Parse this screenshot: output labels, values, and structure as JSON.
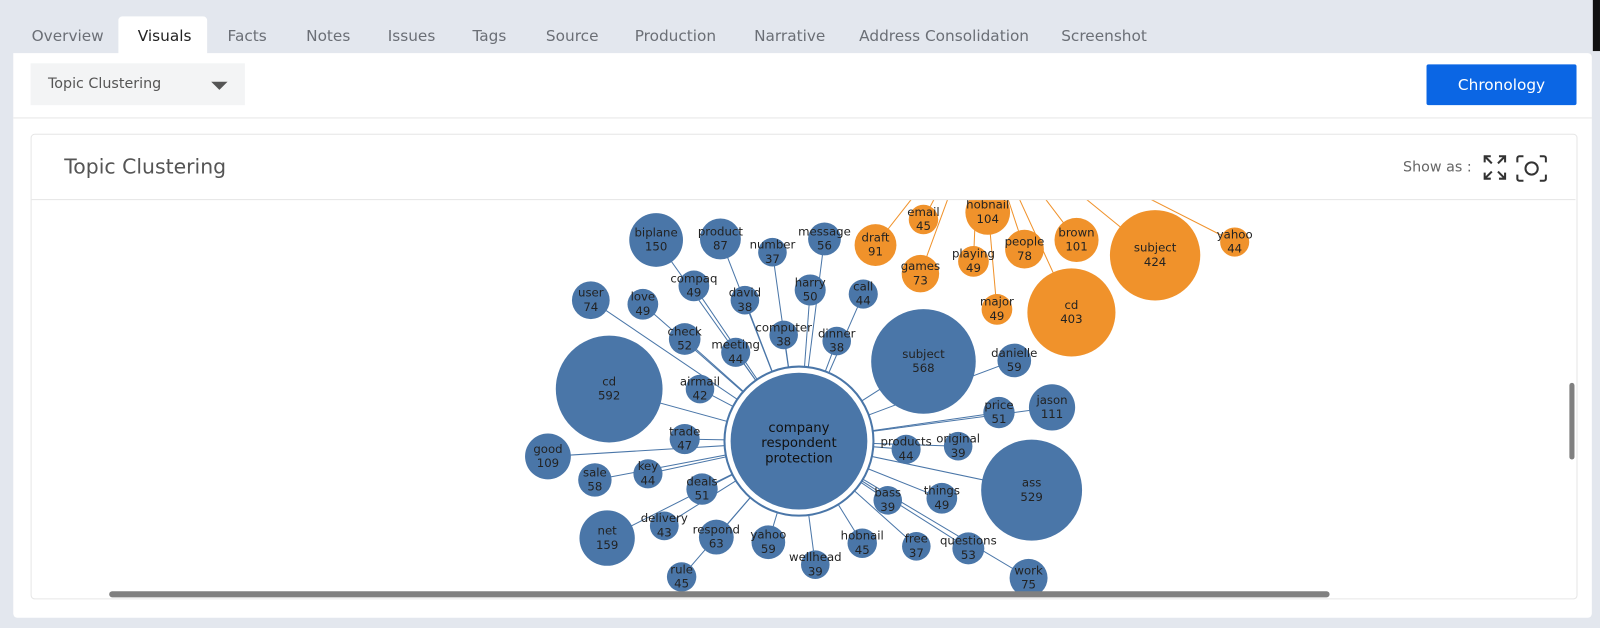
{
  "tabs": [
    "Overview",
    "Visuals",
    "Facts",
    "Notes",
    "Issues",
    "Tags",
    "Source",
    "Production",
    "Narrative",
    "Address Consolidation",
    "Screenshot"
  ],
  "dropdown": {
    "label": "Topic Clustering"
  },
  "button": "Chronology",
  "panel": {
    "title": "Topic Clustering",
    "show_as": "Show as :"
  },
  "graph": {
    "center": "company respondent protection",
    "groups": [
      {
        "color": "#4a76a8",
        "nodes": [
          {
            "label": "cd",
            "count": 592
          },
          {
            "label": "subject",
            "count": 568
          },
          {
            "label": "ass",
            "count": 529
          },
          {
            "label": "biplane",
            "count": 150
          },
          {
            "label": "product",
            "count": 87
          },
          {
            "label": "number",
            "count": 37
          },
          {
            "label": "message",
            "count": 56
          },
          {
            "label": "user",
            "count": 74
          },
          {
            "label": "love",
            "count": 49
          },
          {
            "label": "compaq",
            "count": 49
          },
          {
            "label": "david",
            "count": 38
          },
          {
            "label": "harry",
            "count": 50
          },
          {
            "label": "call",
            "count": 44
          },
          {
            "label": "check",
            "count": 52
          },
          {
            "label": "meeting",
            "count": 44
          },
          {
            "label": "computer",
            "count": 38
          },
          {
            "label": "dinner",
            "count": 38
          },
          {
            "label": "danielle",
            "count": 59
          },
          {
            "label": "airmail",
            "count": 42
          },
          {
            "label": "price",
            "count": 51
          },
          {
            "label": "jason",
            "count": 111
          },
          {
            "label": "trade",
            "count": 47
          },
          {
            "label": "products",
            "count": 44
          },
          {
            "label": "original",
            "count": 39
          },
          {
            "label": "good",
            "count": 109
          },
          {
            "label": "sale",
            "count": 58
          },
          {
            "label": "key",
            "count": 44
          },
          {
            "label": "deals",
            "count": 51
          },
          {
            "label": "bass",
            "count": 39
          },
          {
            "label": "things",
            "count": 49
          },
          {
            "label": "net",
            "count": 159
          },
          {
            "label": "delivery",
            "count": 43
          },
          {
            "label": "respond",
            "count": 63
          },
          {
            "label": "yahoo",
            "count": 59
          },
          {
            "label": "hobnail",
            "count": 45
          },
          {
            "label": "free",
            "count": 37
          },
          {
            "label": "questions",
            "count": 53
          },
          {
            "label": "wellhead",
            "count": 39
          },
          {
            "label": "rule",
            "count": 45
          },
          {
            "label": "work",
            "count": 75
          }
        ]
      },
      {
        "color": "#f0922b",
        "nodes": [
          {
            "label": "draft",
            "count": 91
          },
          {
            "label": "email",
            "count": 45
          },
          {
            "label": "hobnail",
            "count": 104
          },
          {
            "label": "playing",
            "count": 49
          },
          {
            "label": "people",
            "count": 78
          },
          {
            "label": "brown",
            "count": 101
          },
          {
            "label": "games",
            "count": 73
          },
          {
            "label": "major",
            "count": 49
          },
          {
            "label": "cd",
            "count": 403
          },
          {
            "label": "subject",
            "count": 424
          },
          {
            "label": "yahoo",
            "count": 44
          }
        ]
      }
    ]
  }
}
